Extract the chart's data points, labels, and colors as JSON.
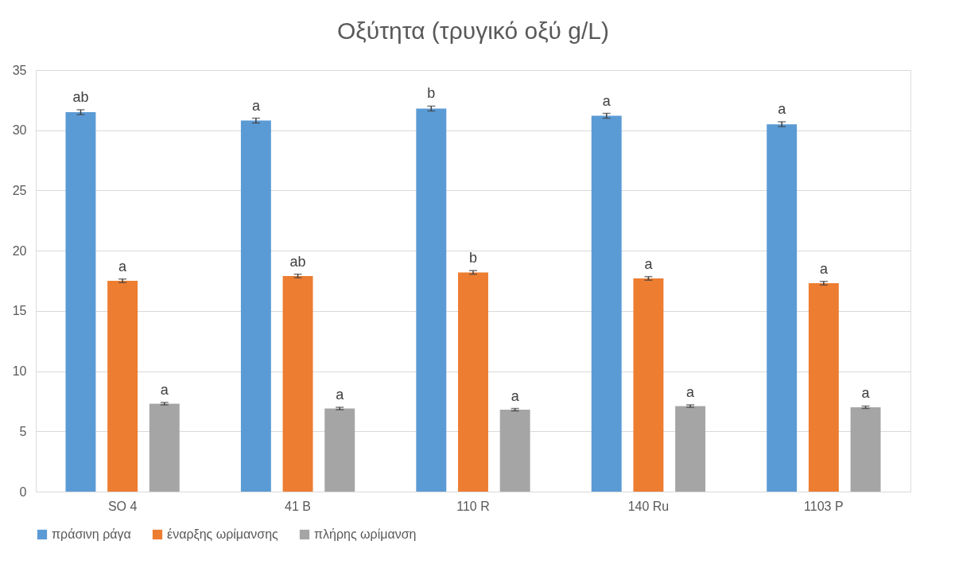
{
  "chart_data": {
    "type": "bar",
    "title": "Οξύτητα (τρυγικό οξύ g/L)",
    "categories": [
      "SO 4",
      "41 B",
      "110 R",
      "140 Ru",
      "1103 P"
    ],
    "series": [
      {
        "name": "πράσινη ράγα",
        "color": "#5b9bd5",
        "values": [
          31.5,
          30.8,
          31.8,
          31.2,
          30.5
        ],
        "errors": [
          0.2,
          0.2,
          0.2,
          0.2,
          0.2
        ],
        "value_labels": [
          "ab",
          "a",
          "b",
          "a",
          "a"
        ]
      },
      {
        "name": "έναρξης ωρίμανσης",
        "color": "#ed7d31",
        "values": [
          17.5,
          17.9,
          18.2,
          17.7,
          17.3
        ],
        "errors": [
          0.15,
          0.15,
          0.15,
          0.15,
          0.15
        ],
        "value_labels": [
          "a",
          "ab",
          "b",
          "a",
          "a"
        ]
      },
      {
        "name": "πλήρης ωρίμανση",
        "color": "#a5a5a5",
        "values": [
          7.3,
          6.9,
          6.8,
          7.1,
          7.0
        ],
        "errors": [
          0.1,
          0.1,
          0.1,
          0.1,
          0.1
        ],
        "value_labels": [
          "a",
          "a",
          "a",
          "a",
          "a"
        ]
      }
    ],
    "ylim": [
      0,
      35
    ],
    "yticks": [
      0,
      5,
      10,
      15,
      20,
      25,
      30,
      35
    ],
    "grid": "y",
    "legend": "bottom"
  }
}
